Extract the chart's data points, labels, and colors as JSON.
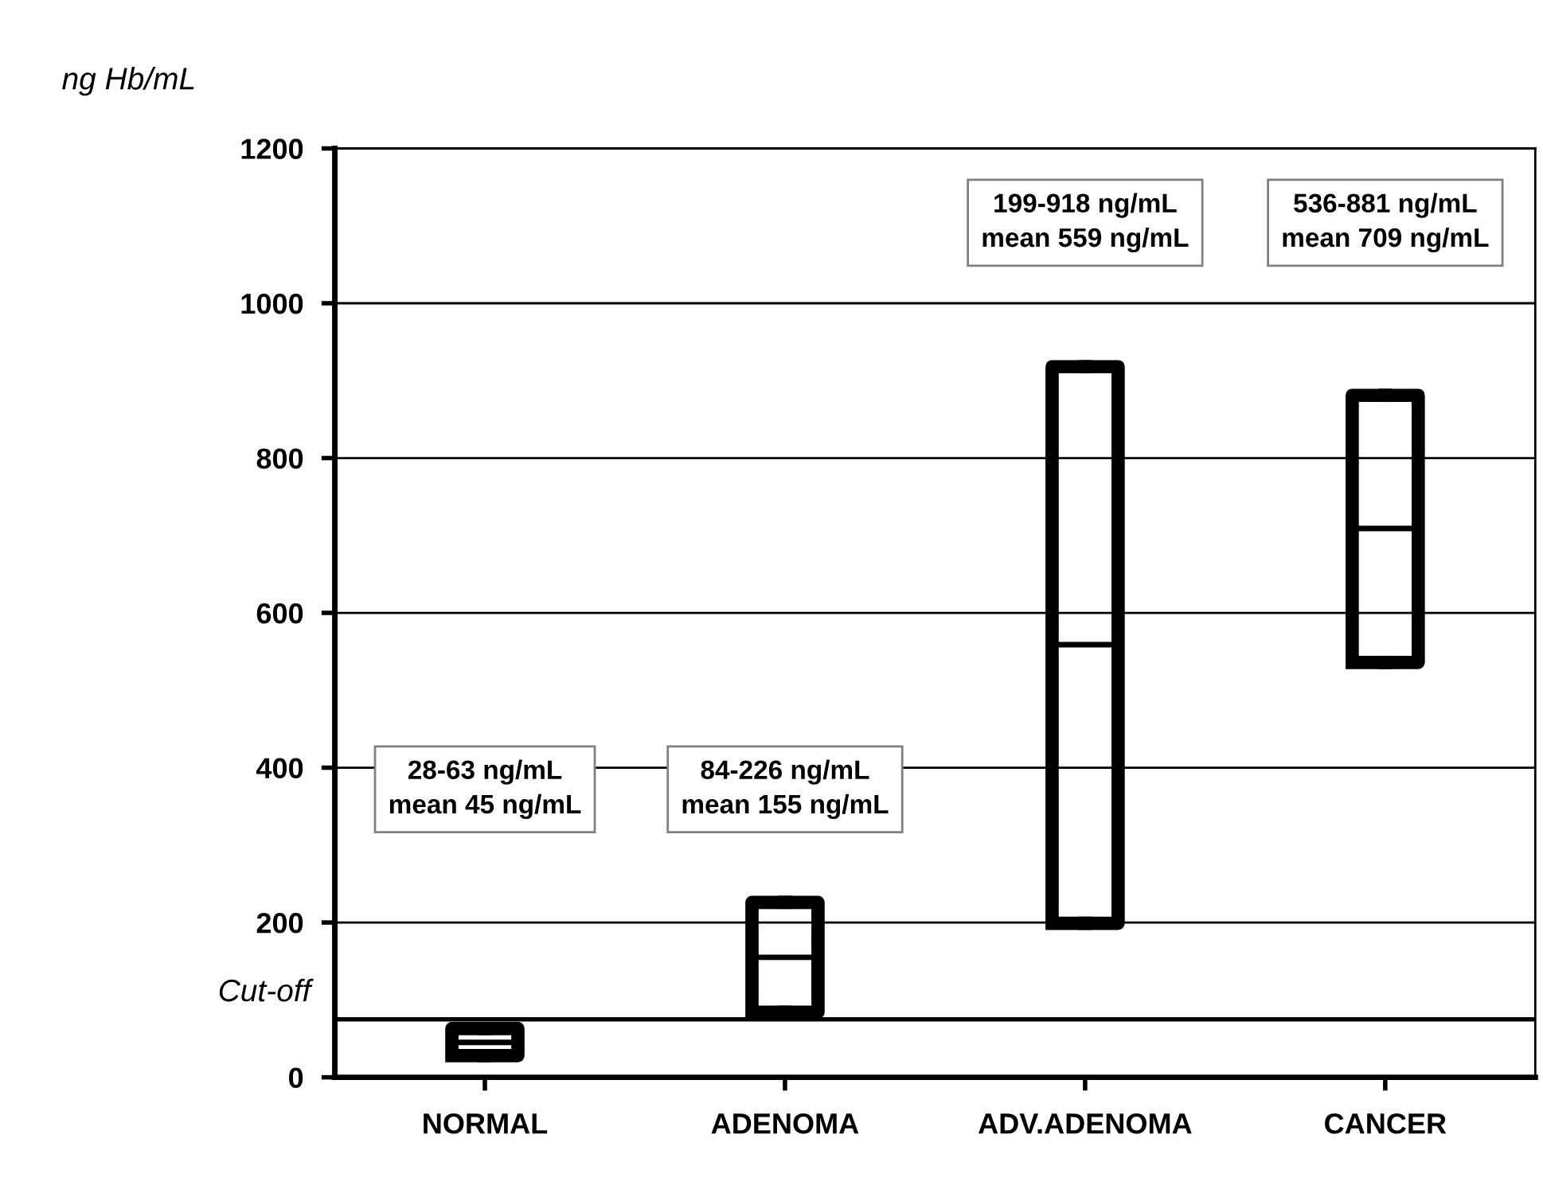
{
  "chart_data": {
    "type": "box",
    "ylabel": "ng Hb/mL",
    "categories": [
      "NORMAL",
      "ADENOMA",
      "ADV.ADENOMA",
      "CANCER"
    ],
    "boxes": [
      {
        "low": 28,
        "q1": 28,
        "q3": 63,
        "high": 63,
        "mean": 45
      },
      {
        "low": 84,
        "q1": 84,
        "q3": 226,
        "high": 226,
        "mean": 155
      },
      {
        "low": 199,
        "q1": 199,
        "q3": 918,
        "high": 918,
        "mean": 559
      },
      {
        "low": 536,
        "q1": 536,
        "q3": 881,
        "high": 881,
        "mean": 709
      }
    ],
    "color": "#000000",
    "ylim": [
      0,
      1200
    ],
    "yticks": [
      0,
      200,
      400,
      600,
      800,
      1000,
      1200
    ],
    "grid": "y",
    "ref_lines": [
      {
        "axis": "y",
        "value": 75,
        "label": "Cut-off",
        "color": "#000000",
        "line_style": "solid"
      }
    ],
    "annotations": [
      "28-63 ng/mL\nmean 45 ng/mL",
      "84-226 ng/mL\nmean 155 ng/mL",
      "199-918 ng/mL\nmean 559 ng/mL",
      "536-881 ng/mL\nmean 709 ng/mL"
    ]
  }
}
